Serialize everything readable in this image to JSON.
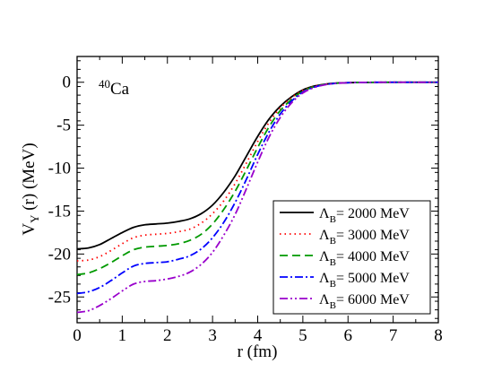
{
  "chart_data": {
    "type": "line",
    "title": "",
    "annotation": {
      "superscript": "40",
      "text": "Ca"
    },
    "xlabel": "r  (fm)",
    "ylabel": {
      "main": "V",
      "sub": "Y",
      "rest": " (r)  (MeV)"
    },
    "xlim": [
      0,
      8
    ],
    "ylim": [
      -28,
      3
    ],
    "xticks": [
      0,
      1,
      2,
      3,
      4,
      5,
      6,
      7,
      8
    ],
    "yticks": [
      0,
      -5,
      -10,
      -15,
      -20,
      -25
    ],
    "xtick_labels": [
      "0",
      "1",
      "2",
      "3",
      "4",
      "5",
      "6",
      "7",
      "8"
    ],
    "ytick_labels": [
      "0",
      "-5",
      "-10",
      "-15",
      "-20",
      "-25"
    ],
    "grid": false,
    "legend_position": "bottom-right",
    "x": [
      0,
      0.25,
      0.5,
      0.75,
      1.0,
      1.25,
      1.5,
      1.75,
      2.0,
      2.25,
      2.5,
      2.75,
      3.0,
      3.25,
      3.5,
      3.75,
      4.0,
      4.25,
      4.5,
      4.75,
      5.0,
      5.25,
      5.5,
      5.75,
      6.0,
      6.5,
      7.0,
      7.5,
      8.0
    ],
    "series": [
      {
        "label_prefix": "Λ",
        "label_sub": "B",
        "label_rest": "= 2000 MeV",
        "color": "#000000",
        "dash": "",
        "values": [
          -19.4,
          -19.3,
          -18.9,
          -18.2,
          -17.5,
          -16.9,
          -16.6,
          -16.5,
          -16.4,
          -16.2,
          -15.9,
          -15.3,
          -14.3,
          -12.8,
          -10.9,
          -8.6,
          -6.3,
          -4.3,
          -2.8,
          -1.7,
          -0.9,
          -0.45,
          -0.22,
          -0.1,
          -0.05,
          -0.01,
          0,
          0,
          0
        ]
      },
      {
        "label_prefix": "Λ",
        "label_sub": "B",
        "label_rest": "= 3000 MeV",
        "color": "#ff0000",
        "dash": "1.5,4",
        "values": [
          -20.8,
          -20.7,
          -20.3,
          -19.6,
          -18.8,
          -18.1,
          -17.8,
          -17.7,
          -17.6,
          -17.4,
          -17.1,
          -16.4,
          -15.3,
          -13.8,
          -11.8,
          -9.4,
          -6.9,
          -4.7,
          -3.0,
          -1.8,
          -0.95,
          -0.48,
          -0.23,
          -0.1,
          -0.05,
          -0.01,
          0,
          0,
          0
        ]
      },
      {
        "label_prefix": "Λ",
        "label_sub": "B",
        "label_rest": "= 4000 MeV",
        "color": "#009900",
        "dash": "9,5",
        "values": [
          -22.4,
          -22.2,
          -21.7,
          -21.0,
          -20.2,
          -19.5,
          -19.2,
          -19.1,
          -19.0,
          -18.8,
          -18.4,
          -17.7,
          -16.5,
          -14.8,
          -12.7,
          -10.2,
          -7.6,
          -5.2,
          -3.3,
          -2.0,
          -1.05,
          -0.52,
          -0.25,
          -0.11,
          -0.05,
          -0.01,
          0,
          0,
          0
        ]
      },
      {
        "label_prefix": "Λ",
        "label_sub": "B",
        "label_rest": "= 5000 MeV",
        "color": "#0000ff",
        "dash": "9,3,2,3",
        "values": [
          -24.6,
          -24.4,
          -23.9,
          -23.1,
          -22.2,
          -21.4,
          -21.1,
          -21.0,
          -20.9,
          -20.6,
          -20.2,
          -19.4,
          -18.1,
          -16.3,
          -14.0,
          -11.3,
          -8.4,
          -5.8,
          -3.7,
          -2.2,
          -1.15,
          -0.57,
          -0.27,
          -0.12,
          -0.05,
          -0.01,
          0,
          0,
          0
        ]
      },
      {
        "label_prefix": "Λ",
        "label_sub": "B",
        "label_rest": "= 6000 MeV",
        "color": "#9900cc",
        "dash": "9,3,2,3,2,3",
        "values": [
          -26.8,
          -26.6,
          -26.0,
          -25.2,
          -24.3,
          -23.5,
          -23.2,
          -23.1,
          -22.9,
          -22.6,
          -22.1,
          -21.2,
          -19.8,
          -17.8,
          -15.4,
          -12.4,
          -9.3,
          -6.4,
          -4.1,
          -2.4,
          -1.25,
          -0.62,
          -0.29,
          -0.13,
          -0.06,
          -0.01,
          0,
          0,
          0
        ]
      }
    ]
  }
}
